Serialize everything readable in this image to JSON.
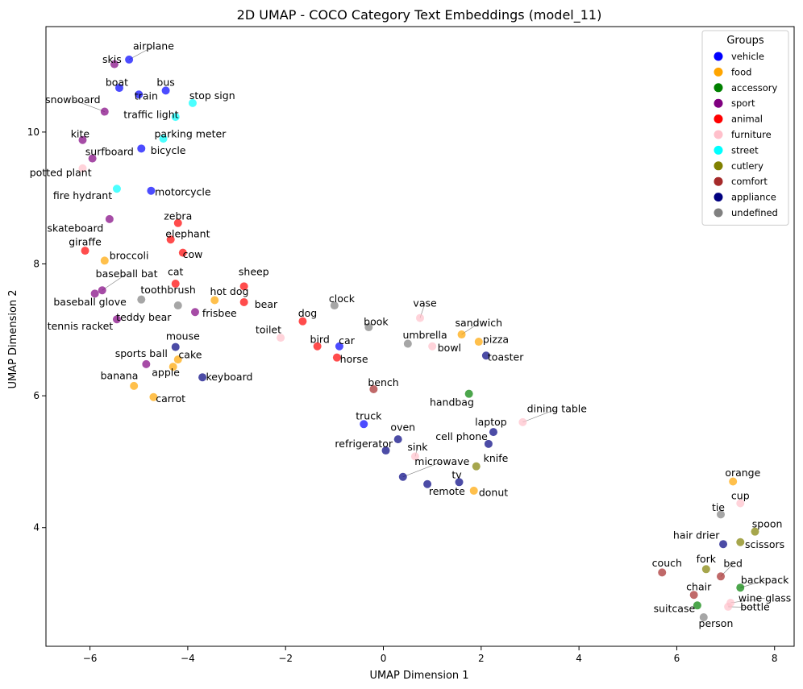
{
  "chart_data": {
    "type": "scatter",
    "title": "2D UMAP - COCO Category Text Embeddings (model_11)",
    "xlabel": "UMAP Dimension 1",
    "ylabel": "UMAP Dimension 2",
    "xlim": [
      -6.9,
      8.4
    ],
    "ylim": [
      2.2,
      11.6
    ],
    "x_ticks": [
      -6,
      -4,
      -2,
      0,
      2,
      4,
      6,
      8
    ],
    "y_ticks": [
      4,
      6,
      8,
      10
    ],
    "grid": false,
    "legend": {
      "title": "Groups",
      "placement": "top-right",
      "entries": [
        {
          "name": "vehicle",
          "color": "#0000ff"
        },
        {
          "name": "food",
          "color": "#ffa500"
        },
        {
          "name": "accessory",
          "color": "#008000"
        },
        {
          "name": "sport",
          "color": "#800080"
        },
        {
          "name": "animal",
          "color": "#ff0000"
        },
        {
          "name": "furniture",
          "color": "#ffc0cb"
        },
        {
          "name": "street",
          "color": "#00ffff"
        },
        {
          "name": "cutlery",
          "color": "#808000"
        },
        {
          "name": "comfort",
          "color": "#a52a2a"
        },
        {
          "name": "appliance",
          "color": "#000080"
        },
        {
          "name": "undefined",
          "color": "#808080"
        }
      ]
    },
    "points": [
      {
        "label": "airplane",
        "group": "vehicle",
        "x": -5.2,
        "y": 11.1,
        "lx": -4.7,
        "ly": 11.3,
        "leader": true
      },
      {
        "label": "skis",
        "group": "sport",
        "x": -5.5,
        "y": 11.03,
        "lx": -5.55,
        "ly": 11.1,
        "leader": false
      },
      {
        "label": "boat",
        "group": "vehicle",
        "x": -5.4,
        "y": 10.67,
        "lx": -5.45,
        "ly": 10.75,
        "leader": false
      },
      {
        "label": "bus",
        "group": "vehicle",
        "x": -4.45,
        "y": 10.63,
        "lx": -4.45,
        "ly": 10.75,
        "leader": false
      },
      {
        "label": "train",
        "group": "vehicle",
        "x": -5.0,
        "y": 10.57,
        "lx": -4.85,
        "ly": 10.54,
        "leader": false
      },
      {
        "label": "stop sign",
        "group": "street",
        "x": -3.9,
        "y": 10.44,
        "lx": -3.5,
        "ly": 10.55,
        "leader": false
      },
      {
        "label": "snowboard",
        "group": "sport",
        "x": -5.7,
        "y": 10.31,
        "lx": -6.35,
        "ly": 10.49,
        "leader": true
      },
      {
        "label": "traffic light",
        "group": "street",
        "x": -4.25,
        "y": 10.23,
        "lx": -4.75,
        "ly": 10.26,
        "leader": false
      },
      {
        "label": "parking meter",
        "group": "street",
        "x": -4.5,
        "y": 9.9,
        "lx": -3.95,
        "ly": 9.97,
        "leader": false
      },
      {
        "label": "kite",
        "group": "sport",
        "x": -6.15,
        "y": 9.88,
        "lx": -6.2,
        "ly": 9.97,
        "leader": false
      },
      {
        "label": "bicycle",
        "group": "vehicle",
        "x": -4.95,
        "y": 9.75,
        "lx": -4.4,
        "ly": 9.72,
        "leader": false
      },
      {
        "label": "surfboard",
        "group": "sport",
        "x": -5.95,
        "y": 9.6,
        "lx": -5.6,
        "ly": 9.7,
        "leader": false
      },
      {
        "label": "potted plant",
        "group": "furniture",
        "x": -6.15,
        "y": 9.45,
        "lx": -6.6,
        "ly": 9.38,
        "leader": false
      },
      {
        "label": "fire hydrant",
        "group": "street",
        "x": -5.45,
        "y": 9.14,
        "lx": -6.15,
        "ly": 9.03,
        "leader": false
      },
      {
        "label": "motorcycle",
        "group": "vehicle",
        "x": -4.75,
        "y": 9.11,
        "lx": -4.1,
        "ly": 9.09,
        "leader": false
      },
      {
        "label": "zebra",
        "group": "animal",
        "x": -4.2,
        "y": 8.62,
        "lx": -4.2,
        "ly": 8.72,
        "leader": false
      },
      {
        "label": "skateboard",
        "group": "sport",
        "x": -5.6,
        "y": 8.68,
        "lx": -6.3,
        "ly": 8.54,
        "leader": false
      },
      {
        "label": "elephant",
        "group": "animal",
        "x": -4.35,
        "y": 8.37,
        "lx": -4.0,
        "ly": 8.45,
        "leader": false
      },
      {
        "label": "giraffe",
        "group": "animal",
        "x": -6.1,
        "y": 8.2,
        "lx": -6.1,
        "ly": 8.33,
        "leader": false
      },
      {
        "label": "cow",
        "group": "animal",
        "x": -4.1,
        "y": 8.17,
        "lx": -3.9,
        "ly": 8.14,
        "leader": false
      },
      {
        "label": "broccoli",
        "group": "food",
        "x": -5.7,
        "y": 8.05,
        "lx": -5.2,
        "ly": 8.12,
        "leader": false
      },
      {
        "label": "baseball bat",
        "group": "sport",
        "x": -5.75,
        "y": 7.6,
        "lx": -5.25,
        "ly": 7.85,
        "leader": true
      },
      {
        "label": "cat",
        "group": "animal",
        "x": -4.25,
        "y": 7.7,
        "lx": -4.25,
        "ly": 7.88,
        "leader": false
      },
      {
        "label": "sheep",
        "group": "animal",
        "x": -2.85,
        "y": 7.66,
        "lx": -2.65,
        "ly": 7.88,
        "leader": false
      },
      {
        "label": "baseball glove",
        "group": "sport",
        "x": -5.9,
        "y": 7.55,
        "lx": -6.0,
        "ly": 7.42,
        "leader": false
      },
      {
        "label": "toothbrush",
        "group": "undefined",
        "x": -4.95,
        "y": 7.46,
        "lx": -4.4,
        "ly": 7.6,
        "leader": false
      },
      {
        "label": "hot dog",
        "group": "food",
        "x": -3.45,
        "y": 7.45,
        "lx": -3.15,
        "ly": 7.58,
        "leader": false
      },
      {
        "label": "bear",
        "group": "animal",
        "x": -2.85,
        "y": 7.42,
        "lx": -2.4,
        "ly": 7.38,
        "leader": false
      },
      {
        "label": "teddy bear",
        "group": "undefined",
        "x": -4.2,
        "y": 7.37,
        "lx": -4.9,
        "ly": 7.19,
        "leader": false
      },
      {
        "label": "clock",
        "group": "undefined",
        "x": -1.0,
        "y": 7.37,
        "lx": -0.85,
        "ly": 7.47,
        "leader": false
      },
      {
        "label": "frisbee",
        "group": "sport",
        "x": -3.85,
        "y": 7.27,
        "lx": -3.35,
        "ly": 7.25,
        "leader": false
      },
      {
        "label": "tennis racket",
        "group": "sport",
        "x": -5.45,
        "y": 7.16,
        "lx": -6.2,
        "ly": 7.05,
        "leader": false
      },
      {
        "label": "dog",
        "group": "animal",
        "x": -1.65,
        "y": 7.13,
        "lx": -1.55,
        "ly": 7.25,
        "leader": false
      },
      {
        "label": "vase",
        "group": "furniture",
        "x": 0.75,
        "y": 7.18,
        "lx": 0.85,
        "ly": 7.4,
        "leader": true
      },
      {
        "label": "book",
        "group": "undefined",
        "x": -0.3,
        "y": 7.04,
        "lx": -0.15,
        "ly": 7.12,
        "leader": false
      },
      {
        "label": "sandwich",
        "group": "food",
        "x": 1.6,
        "y": 6.93,
        "lx": 1.95,
        "ly": 7.1,
        "leader": true
      },
      {
        "label": "toilet",
        "group": "furniture",
        "x": -2.1,
        "y": 6.88,
        "lx": -2.35,
        "ly": 7.0,
        "leader": false
      },
      {
        "label": "pizza",
        "group": "food",
        "x": 1.95,
        "y": 6.82,
        "lx": 2.3,
        "ly": 6.85,
        "leader": false
      },
      {
        "label": "bird",
        "group": "animal",
        "x": -1.35,
        "y": 6.75,
        "lx": -1.3,
        "ly": 6.85,
        "leader": false
      },
      {
        "label": "car",
        "group": "vehicle",
        "x": -0.9,
        "y": 6.75,
        "lx": -0.75,
        "ly": 6.83,
        "leader": false
      },
      {
        "label": "umbrella",
        "group": "undefined",
        "x": 0.5,
        "y": 6.79,
        "lx": 0.85,
        "ly": 6.92,
        "leader": false
      },
      {
        "label": "bowl",
        "group": "furniture",
        "x": 1.0,
        "y": 6.75,
        "lx": 1.35,
        "ly": 6.72,
        "leader": false
      },
      {
        "label": "mouse",
        "group": "appliance",
        "x": -4.25,
        "y": 6.74,
        "lx": -4.1,
        "ly": 6.9,
        "leader": false
      },
      {
        "label": "horse",
        "group": "animal",
        "x": -0.95,
        "y": 6.58,
        "lx": -0.6,
        "ly": 6.55,
        "leader": false
      },
      {
        "label": "toaster",
        "group": "appliance",
        "x": 2.1,
        "y": 6.61,
        "lx": 2.5,
        "ly": 6.58,
        "leader": false
      },
      {
        "label": "cake",
        "group": "food",
        "x": -4.2,
        "y": 6.55,
        "lx": -3.95,
        "ly": 6.62,
        "leader": false
      },
      {
        "label": "sports ball",
        "group": "sport",
        "x": -4.85,
        "y": 6.48,
        "lx": -4.95,
        "ly": 6.64,
        "leader": false
      },
      {
        "label": "apple",
        "group": "food",
        "x": -4.3,
        "y": 6.44,
        "lx": -4.45,
        "ly": 6.35,
        "leader": false
      },
      {
        "label": "keyboard",
        "group": "appliance",
        "x": -3.7,
        "y": 6.28,
        "lx": -3.15,
        "ly": 6.28,
        "leader": false
      },
      {
        "label": "banana",
        "group": "food",
        "x": -5.1,
        "y": 6.15,
        "lx": -5.4,
        "ly": 6.3,
        "leader": false
      },
      {
        "label": "bench",
        "group": "comfort",
        "x": -0.2,
        "y": 6.1,
        "lx": 0.0,
        "ly": 6.2,
        "leader": false
      },
      {
        "label": "handbag",
        "group": "accessory",
        "x": 1.75,
        "y": 6.03,
        "lx": 1.4,
        "ly": 5.9,
        "leader": false
      },
      {
        "label": "carrot",
        "group": "food",
        "x": -4.7,
        "y": 5.98,
        "lx": -4.35,
        "ly": 5.95,
        "leader": false
      },
      {
        "label": "dining table",
        "group": "furniture",
        "x": 2.85,
        "y": 5.6,
        "lx": 3.55,
        "ly": 5.8,
        "leader": true
      },
      {
        "label": "truck",
        "group": "vehicle",
        "x": -0.4,
        "y": 5.57,
        "lx": -0.3,
        "ly": 5.69,
        "leader": false
      },
      {
        "label": "laptop",
        "group": "appliance",
        "x": 2.25,
        "y": 5.45,
        "lx": 2.2,
        "ly": 5.6,
        "leader": false
      },
      {
        "label": "oven",
        "group": "appliance",
        "x": 0.3,
        "y": 5.34,
        "lx": 0.4,
        "ly": 5.52,
        "leader": false
      },
      {
        "label": "cell phone",
        "group": "appliance",
        "x": 2.15,
        "y": 5.27,
        "lx": 1.6,
        "ly": 5.38,
        "leader": false
      },
      {
        "label": "refrigerator",
        "group": "appliance",
        "x": 0.05,
        "y": 5.17,
        "lx": -0.4,
        "ly": 5.27,
        "leader": false
      },
      {
        "label": "sink",
        "group": "furniture",
        "x": 0.65,
        "y": 5.08,
        "lx": 0.7,
        "ly": 5.22,
        "leader": true
      },
      {
        "label": "knife",
        "group": "cutlery",
        "x": 1.9,
        "y": 4.93,
        "lx": 2.3,
        "ly": 5.05,
        "leader": false
      },
      {
        "label": "microwave",
        "group": "appliance",
        "x": 0.4,
        "y": 4.77,
        "lx": 1.2,
        "ly": 5.0,
        "leader": true
      },
      {
        "label": "tv",
        "group": "appliance",
        "x": 1.55,
        "y": 4.69,
        "lx": 1.5,
        "ly": 4.8,
        "leader": false
      },
      {
        "label": "remote",
        "group": "appliance",
        "x": 0.9,
        "y": 4.66,
        "lx": 1.3,
        "ly": 4.55,
        "leader": false
      },
      {
        "label": "donut",
        "group": "food",
        "x": 1.85,
        "y": 4.56,
        "lx": 2.25,
        "ly": 4.53,
        "leader": false
      },
      {
        "label": "orange",
        "group": "food",
        "x": 7.15,
        "y": 4.7,
        "lx": 7.35,
        "ly": 4.83,
        "leader": false
      },
      {
        "label": "cup",
        "group": "furniture",
        "x": 7.3,
        "y": 4.37,
        "lx": 7.3,
        "ly": 4.48,
        "leader": false
      },
      {
        "label": "tie",
        "group": "undefined",
        "x": 6.9,
        "y": 4.2,
        "lx": 6.85,
        "ly": 4.3,
        "leader": false
      },
      {
        "label": "spoon",
        "group": "cutlery",
        "x": 7.6,
        "y": 3.94,
        "lx": 7.85,
        "ly": 4.05,
        "leader": false
      },
      {
        "label": "hair drier",
        "group": "appliance",
        "x": 6.95,
        "y": 3.75,
        "lx": 6.4,
        "ly": 3.88,
        "leader": false
      },
      {
        "label": "scissors",
        "group": "cutlery",
        "x": 7.3,
        "y": 3.78,
        "lx": 7.8,
        "ly": 3.74,
        "leader": false
      },
      {
        "label": "fork",
        "group": "cutlery",
        "x": 6.6,
        "y": 3.37,
        "lx": 6.6,
        "ly": 3.52,
        "leader": false
      },
      {
        "label": "bed",
        "group": "comfort",
        "x": 6.9,
        "y": 3.26,
        "lx": 7.15,
        "ly": 3.45,
        "leader": true
      },
      {
        "label": "couch",
        "group": "comfort",
        "x": 5.7,
        "y": 3.32,
        "lx": 5.8,
        "ly": 3.46,
        "leader": false
      },
      {
        "label": "backpack",
        "group": "accessory",
        "x": 7.3,
        "y": 3.09,
        "lx": 7.8,
        "ly": 3.2,
        "leader": true
      },
      {
        "label": "chair",
        "group": "comfort",
        "x": 6.35,
        "y": 2.98,
        "lx": 6.45,
        "ly": 3.1,
        "leader": false
      },
      {
        "label": "wine glass",
        "group": "furniture",
        "x": 7.1,
        "y": 2.86,
        "lx": 7.8,
        "ly": 2.93,
        "leader": true
      },
      {
        "label": "suitcase",
        "group": "accessory",
        "x": 6.42,
        "y": 2.82,
        "lx": 5.95,
        "ly": 2.77,
        "leader": false
      },
      {
        "label": "bottle",
        "group": "furniture",
        "x": 7.05,
        "y": 2.8,
        "lx": 7.6,
        "ly": 2.79,
        "leader": true
      },
      {
        "label": "person",
        "group": "undefined",
        "x": 6.55,
        "y": 2.64,
        "lx": 6.8,
        "ly": 2.54,
        "leader": false
      }
    ]
  }
}
